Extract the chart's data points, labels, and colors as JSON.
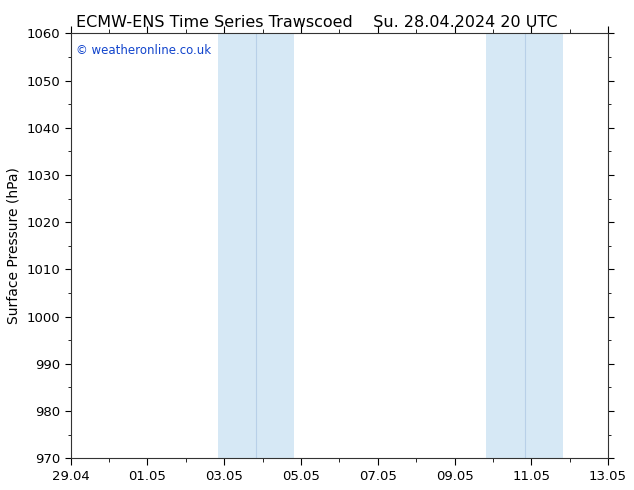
{
  "title_left": "ECMW-ENS Time Series Trawscoed",
  "title_right": "Su. 28.04.2024 20 UTC",
  "ylabel": "Surface Pressure (hPa)",
  "ylim": [
    970,
    1060
  ],
  "ytick_interval": 10,
  "bg_color": "#ffffff",
  "plot_bg_color": "#ffffff",
  "band_color": "#d6e8f5",
  "watermark": "© weatheronline.co.uk",
  "watermark_color": "#1144cc",
  "xtick_labels": [
    "29.04",
    "01.05",
    "03.05",
    "05.05",
    "07.05",
    "09.05",
    "11.05",
    "13.05"
  ],
  "xtick_positions_days": [
    0,
    2,
    4,
    6,
    8,
    10,
    12,
    14
  ],
  "shaded_bands": [
    {
      "x_start_days": 3.83,
      "x_end_days": 4.83
    },
    {
      "x_start_days": 4.83,
      "x_end_days": 5.83
    },
    {
      "x_start_days": 10.83,
      "x_end_days": 11.83
    },
    {
      "x_start_days": 11.83,
      "x_end_days": 12.83
    }
  ],
  "title_fontsize": 11.5,
  "label_fontsize": 10,
  "tick_fontsize": 9.5,
  "watermark_fontsize": 8.5
}
